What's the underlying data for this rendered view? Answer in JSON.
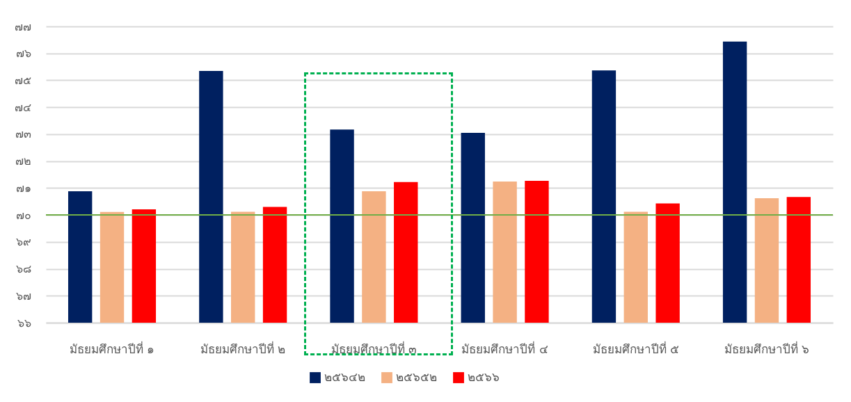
{
  "chart_data": {
    "type": "bar",
    "categories": [
      "มัธยมศึกษาปีที่ ๑",
      "มัธยมศึกษาปีที่ ๒",
      "มัธยมศึกษาปีที่ ๓",
      "มัธยมศึกษาปีที่ ๔",
      "มัธยมศึกษาปีที่ ๕",
      "มัธยมศึกษาปีที่ ๖"
    ],
    "series": [
      {
        "name": "๒๕๖๔๒",
        "color": "#002060",
        "values": [
          70.88,
          75.35,
          73.17,
          73.05,
          75.37,
          76.44
        ]
      },
      {
        "name": "๒๕๖๕๒",
        "color": "#f4b183",
        "values": [
          70.11,
          70.12,
          70.88,
          71.24,
          70.12,
          70.62
        ]
      },
      {
        "name": "๒๕๖๖",
        "color": "#ff0000",
        "values": [
          70.21,
          70.3,
          71.22,
          71.27,
          70.43,
          70.67
        ]
      }
    ],
    "ylim": [
      66,
      77
    ],
    "yticks": [
      {
        "value": 66,
        "label": "๖๖"
      },
      {
        "value": 67,
        "label": "๖๗"
      },
      {
        "value": 68,
        "label": "๖๘"
      },
      {
        "value": 69,
        "label": "๖๙"
      },
      {
        "value": 70,
        "label": "๗๐"
      },
      {
        "value": 71,
        "label": "๗๑"
      },
      {
        "value": 72,
        "label": "๗๒"
      },
      {
        "value": 73,
        "label": "๗๓"
      },
      {
        "value": 74,
        "label": "๗๔"
      },
      {
        "value": 75,
        "label": "๗๕"
      },
      {
        "value": 76,
        "label": "๗๖"
      },
      {
        "value": 77,
        "label": "๗๗"
      }
    ],
    "ref_lines": [
      {
        "axis": "y",
        "value": 70,
        "color": "#70ad47"
      }
    ],
    "grid": "y",
    "legend": "bottom"
  }
}
